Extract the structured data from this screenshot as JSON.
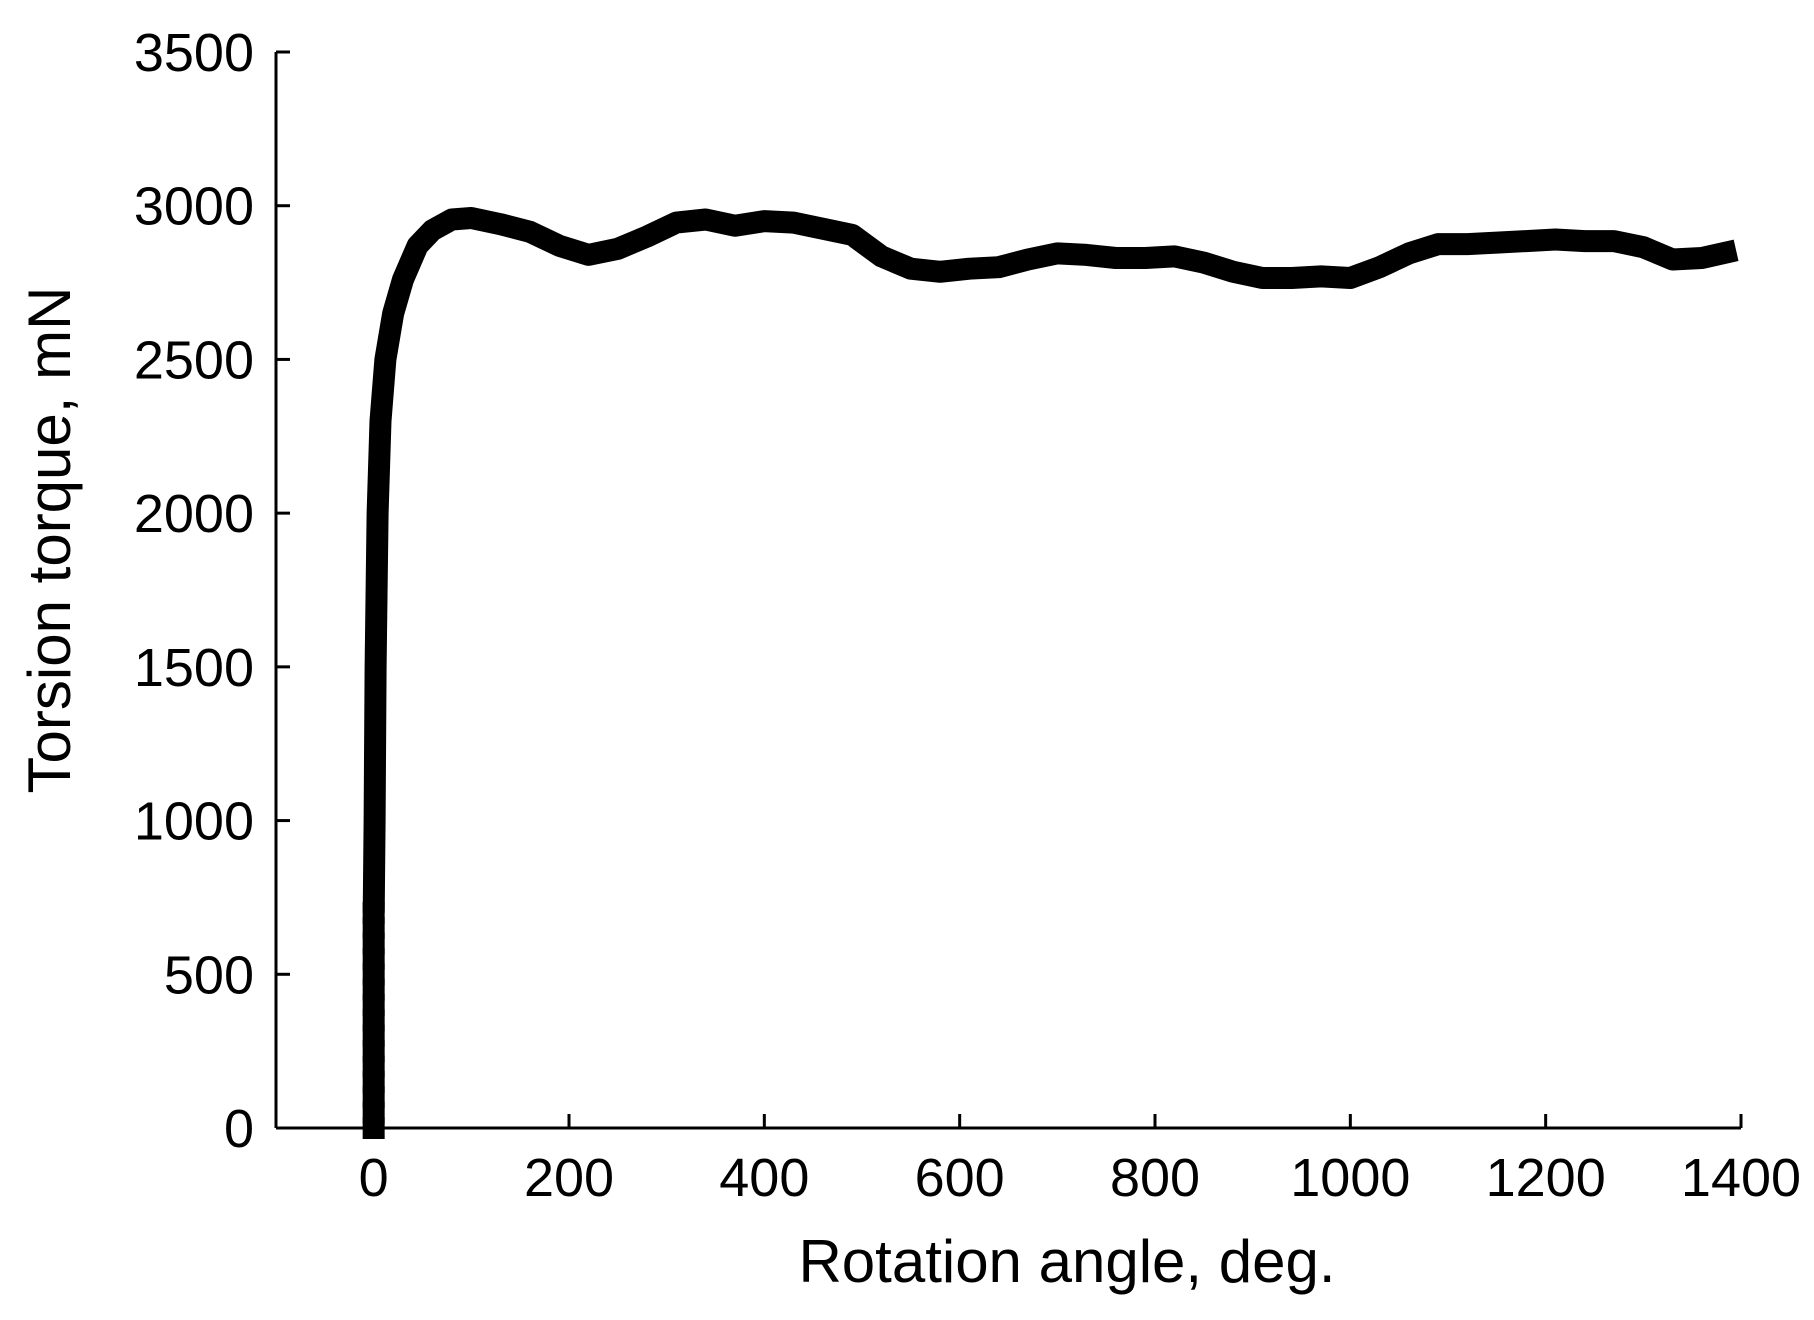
{
  "chart_data": {
    "type": "line",
    "title": "",
    "xlabel": "Rotation angle, deg.",
    "ylabel": "Torsion torque, mN",
    "xlim": [
      -100,
      1400
    ],
    "ylim": [
      0,
      3500
    ],
    "xticks": [
      0,
      200,
      400,
      600,
      800,
      1000,
      1200,
      1400
    ],
    "yticks": [
      0,
      500,
      1000,
      1500,
      2000,
      2500,
      3000,
      3500
    ],
    "xtick_labels": [
      "0",
      "200",
      "400",
      "600",
      "800",
      "1000",
      "1200",
      "1400"
    ],
    "ytick_labels": [
      "0",
      "500",
      "1000",
      "1500",
      "2000",
      "2500",
      "3000",
      "3500"
    ],
    "grid": false,
    "line_color": "#000000",
    "series": [
      {
        "values": [
          [
            0,
            0
          ],
          [
            0,
            50
          ],
          [
            0,
            100
          ],
          [
            0,
            150
          ],
          [
            0,
            200
          ],
          [
            0,
            250
          ],
          [
            0,
            300
          ],
          [
            0,
            350
          ],
          [
            0,
            400
          ],
          [
            0,
            450
          ],
          [
            0,
            500
          ],
          [
            0,
            550
          ],
          [
            0,
            600
          ],
          [
            0,
            650
          ],
          [
            0,
            700
          ],
          [
            1,
            1000
          ],
          [
            2,
            1500
          ],
          [
            4,
            2000
          ],
          [
            7,
            2300
          ],
          [
            12,
            2500
          ],
          [
            20,
            2650
          ],
          [
            30,
            2760
          ],
          [
            45,
            2870
          ],
          [
            60,
            2920
          ],
          [
            80,
            2955
          ],
          [
            100,
            2960
          ],
          [
            130,
            2940
          ],
          [
            160,
            2915
          ],
          [
            190,
            2870
          ],
          [
            220,
            2840
          ],
          [
            250,
            2860
          ],
          [
            280,
            2900
          ],
          [
            310,
            2945
          ],
          [
            340,
            2955
          ],
          [
            370,
            2935
          ],
          [
            400,
            2950
          ],
          [
            430,
            2945
          ],
          [
            460,
            2925
          ],
          [
            490,
            2905
          ],
          [
            520,
            2835
          ],
          [
            550,
            2795
          ],
          [
            580,
            2785
          ],
          [
            610,
            2795
          ],
          [
            640,
            2800
          ],
          [
            670,
            2825
          ],
          [
            700,
            2845
          ],
          [
            730,
            2840
          ],
          [
            760,
            2830
          ],
          [
            790,
            2830
          ],
          [
            820,
            2835
          ],
          [
            850,
            2815
          ],
          [
            880,
            2785
          ],
          [
            910,
            2765
          ],
          [
            940,
            2765
          ],
          [
            970,
            2770
          ],
          [
            1000,
            2765
          ],
          [
            1030,
            2800
          ],
          [
            1060,
            2845
          ],
          [
            1090,
            2875
          ],
          [
            1120,
            2875
          ],
          [
            1150,
            2880
          ],
          [
            1180,
            2885
          ],
          [
            1210,
            2890
          ],
          [
            1240,
            2885
          ],
          [
            1270,
            2885
          ],
          [
            1300,
            2865
          ],
          [
            1330,
            2825
          ],
          [
            1360,
            2830
          ],
          [
            1395,
            2855
          ]
        ]
      }
    ]
  }
}
